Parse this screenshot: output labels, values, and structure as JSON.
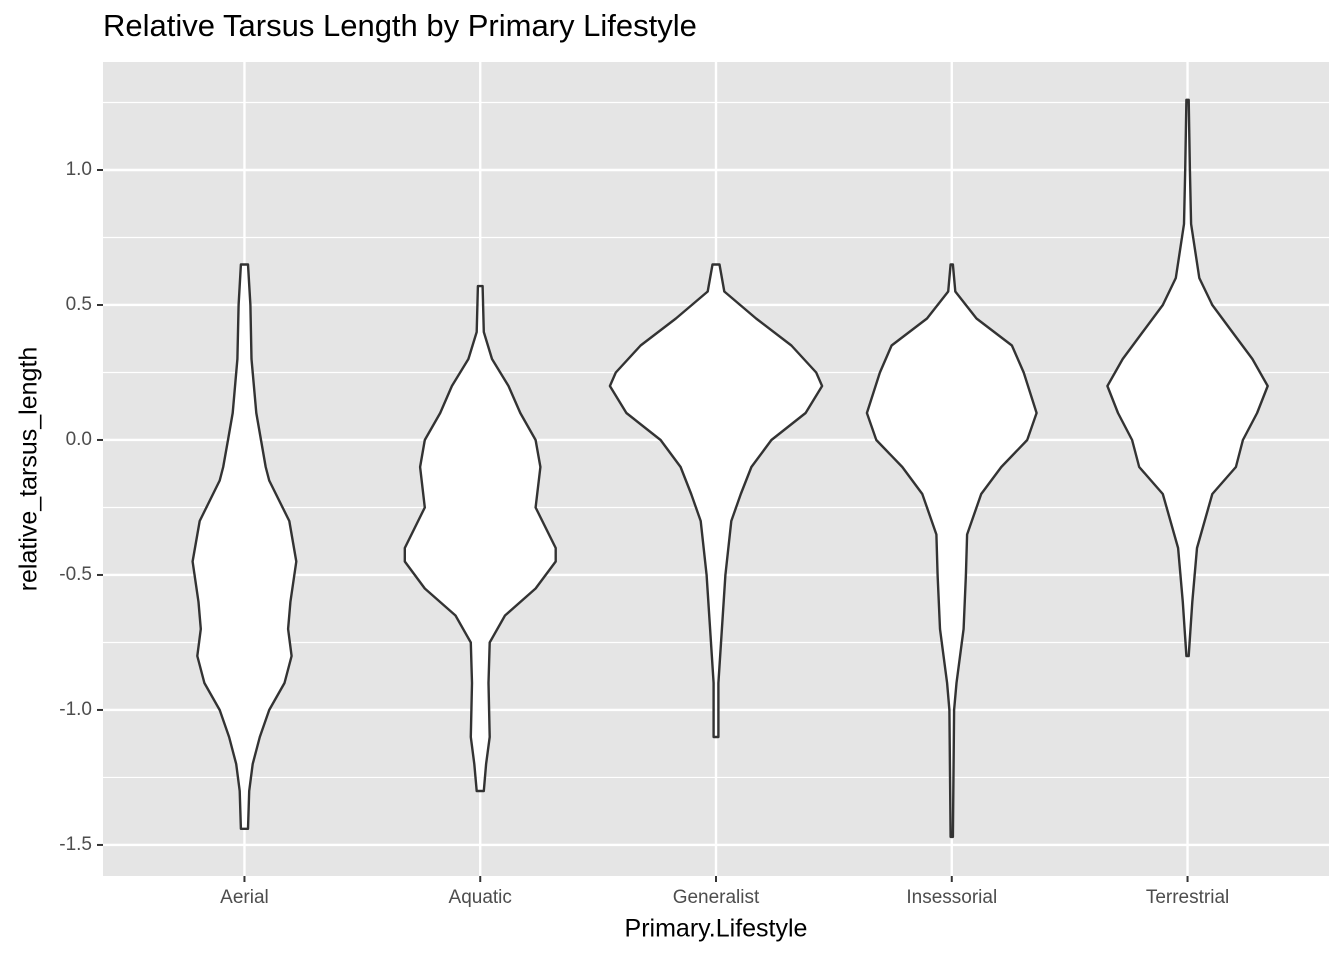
{
  "chart_data": {
    "type": "violin",
    "title": "Relative Tarsus Length by Primary Lifestyle",
    "x_label": "Primary.Lifestyle",
    "y_label": "relative_tarsus_length",
    "categories": [
      "Aerial",
      "Aquatic",
      "Generalist",
      "Insessorial",
      "Terrestrial"
    ],
    "violins": [
      {
        "y": [
          0.65,
          0.5,
          0.3,
          0.1,
          0,
          -0.1,
          -0.15,
          -0.3,
          -0.45,
          -0.6,
          -0.7,
          -0.8,
          -0.9,
          -1.0,
          -1.1,
          -1.2,
          -1.3,
          -1.44
        ],
        "widths": [
          0.03,
          0.05,
          0.06,
          0.1,
          0.14,
          0.18,
          0.21,
          0.38,
          0.44,
          0.39,
          0.37,
          0.4,
          0.34,
          0.21,
          0.13,
          0.07,
          0.04,
          0.03
        ]
      },
      {
        "y": [
          0.57,
          0.4,
          0.3,
          0.2,
          0.1,
          0,
          -0.1,
          -0.25,
          -0.4,
          -0.45,
          -0.55,
          -0.65,
          -0.75,
          -0.9,
          -1.1,
          -1.2,
          -1.3
        ],
        "widths": [
          0.02,
          0.03,
          0.1,
          0.24,
          0.34,
          0.47,
          0.51,
          0.47,
          0.64,
          0.64,
          0.47,
          0.21,
          0.08,
          0.07,
          0.08,
          0.05,
          0.03
        ]
      },
      {
        "y": [
          0.65,
          0.55,
          0.45,
          0.35,
          0.25,
          0.2,
          0.1,
          0,
          -0.1,
          -0.2,
          -0.3,
          -0.5,
          -0.7,
          -0.9,
          -1.1
        ],
        "widths": [
          0.03,
          0.07,
          0.34,
          0.64,
          0.85,
          0.9,
          0.76,
          0.47,
          0.3,
          0.21,
          0.13,
          0.08,
          0.05,
          0.02,
          0.02
        ]
      },
      {
        "y": [
          0.65,
          0.55,
          0.45,
          0.35,
          0.25,
          0.1,
          0,
          -0.1,
          -0.2,
          -0.35,
          -0.5,
          -0.7,
          -0.9,
          -1.0,
          -1.47
        ],
        "widths": [
          0.01,
          0.03,
          0.21,
          0.51,
          0.61,
          0.72,
          0.64,
          0.42,
          0.25,
          0.13,
          0.12,
          0.1,
          0.04,
          0.02,
          0.01
        ]
      },
      {
        "y": [
          1.26,
          1.0,
          0.8,
          0.6,
          0.5,
          0.4,
          0.3,
          0.2,
          0.1,
          0,
          -0.1,
          -0.2,
          -0.4,
          -0.6,
          -0.8
        ],
        "widths": [
          0.01,
          0.02,
          0.03,
          0.1,
          0.21,
          0.38,
          0.55,
          0.68,
          0.59,
          0.47,
          0.41,
          0.21,
          0.08,
          0.04,
          0.01
        ]
      }
    ],
    "fill": "#ffffff",
    "outline": "#333333",
    "panel_color": "#e5e5e5",
    "ylim": [
      -1.615,
      1.4
    ],
    "yticks": [
      {
        "value": 1.0,
        "label": "1.0"
      },
      {
        "value": 0.5,
        "label": "0.5"
      },
      {
        "value": 0,
        "label": "0.0"
      },
      {
        "value": -0.5,
        "label": "-0.5"
      },
      {
        "value": -1.0,
        "label": "-1.0"
      },
      {
        "value": -1.5,
        "label": "-1.5"
      }
    ],
    "minor_yticks": [
      1.25,
      0.75,
      0.25,
      -0.25,
      -0.75,
      -1.25
    ],
    "grid": true
  }
}
